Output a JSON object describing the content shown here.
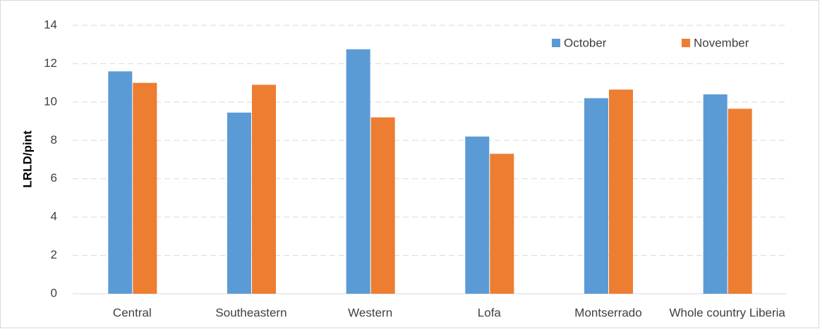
{
  "chart_data": {
    "type": "bar",
    "y_label": "LRLD/pint",
    "categories": [
      "Central",
      "Southeastern",
      "Western",
      "Lofa",
      "Montserrado",
      "Whole country Liberia"
    ],
    "series": [
      {
        "name": "October",
        "color": "#5b9bd5",
        "values": [
          11.6,
          9.45,
          12.75,
          8.2,
          10.2,
          10.4
        ]
      },
      {
        "name": "November",
        "color": "#ed7d31",
        "values": [
          11.0,
          10.9,
          9.2,
          7.3,
          10.65,
          9.65
        ]
      }
    ],
    "ylim": [
      0,
      14
    ],
    "yticks": [
      0,
      2,
      4,
      6,
      8,
      10,
      12,
      14
    ],
    "grid": true,
    "legend": "top-right"
  }
}
